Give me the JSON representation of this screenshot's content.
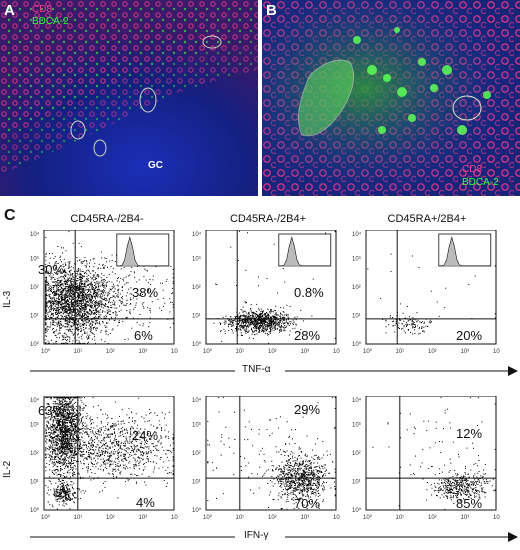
{
  "figure": {
    "panel_a": {
      "letter": "A",
      "labels": {
        "cd8": "CD8",
        "bdca2": "BDCA-2",
        "gc": "GC"
      }
    },
    "panel_b": {
      "letter": "B",
      "labels": {
        "cd8": "CD8",
        "bdca2": "BDCA-2"
      }
    },
    "panel_c": {
      "letter": "C",
      "columns": [
        "CD45RA-/2B4-",
        "CD45RA-/2B4+",
        "CD45RA+/2B4+"
      ],
      "row1": {
        "y_axis": "IL-3",
        "x_axis": "TNF-α",
        "plots": [
          {
            "upper_left": "30%",
            "upper_right": "38%",
            "lower_right": "6%"
          },
          {
            "upper_left": "",
            "upper_right": "0.8%",
            "lower_right": "28%"
          },
          {
            "upper_left": "",
            "upper_right": "",
            "lower_right": "20%"
          }
        ]
      },
      "row2": {
        "y_axis": "IL-2",
        "x_axis": "IFN-γ",
        "plots": [
          {
            "upper_left": "63%",
            "upper_right": "24%",
            "lower_right": "4%"
          },
          {
            "upper_left": "",
            "upper_right": "29%",
            "lower_right": "70%"
          },
          {
            "upper_left": "",
            "upper_right": "12%",
            "lower_right": "85%"
          }
        ]
      },
      "tick_labels": {
        "x": [
          "10⁰",
          "10¹",
          "10²",
          "10³",
          "10⁴"
        ],
        "y": [
          "10⁴",
          "10³",
          "10²",
          "10¹",
          "10⁰"
        ]
      }
    },
    "colors": {
      "cd8": "#ff3b8a",
      "bdca2": "#35ff3a",
      "nuclei": "#1a2da8"
    }
  }
}
